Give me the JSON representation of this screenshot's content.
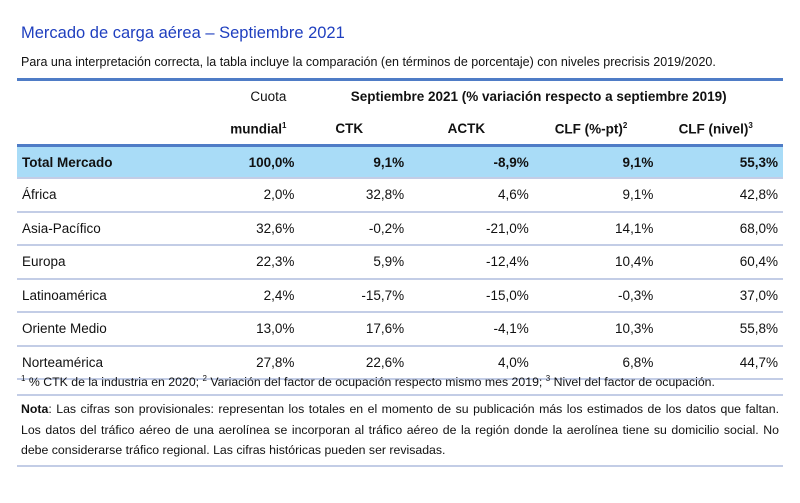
{
  "title": "Mercado de carga aérea – Septiembre 2021",
  "subtitle": "Para una interpretación correcta, la tabla incluye la comparación (en términos de porcentaje) con niveles precrisis 2019/2020.",
  "table": {
    "header": {
      "cuota_line1": "Cuota",
      "cuota_line2": "mundial",
      "cuota_sup": "1",
      "group_label": "Septiembre 2021 (% variación respecto a septiembre 2019)",
      "ctk": "CTK",
      "actk": "ACTK",
      "clf_pt": "CLF (%-pt)",
      "clf_pt_sup": "2",
      "clf_nivel": "CLF (nivel)",
      "clf_nivel_sup": "3"
    },
    "total": {
      "region": "Total Mercado",
      "cuota": "100,0%",
      "ctk": "9,1%",
      "actk": "-8,9%",
      "clf_pt": "9,1%",
      "clf_nivel": "55,3%"
    },
    "rows": [
      {
        "region": "África",
        "cuota": "2,0%",
        "ctk": "32,8%",
        "actk": "4,6%",
        "clf_pt": "9,1%",
        "clf_nivel": "42,8%"
      },
      {
        "region": "Asia-Pacífico",
        "cuota": "32,6%",
        "ctk": "-0,2%",
        "actk": "-21,0%",
        "clf_pt": "14,1%",
        "clf_nivel": "68,0%"
      },
      {
        "region": "Europa",
        "cuota": "22,3%",
        "ctk": "5,9%",
        "actk": "-12,4%",
        "clf_pt": "10,4%",
        "clf_nivel": "60,4%"
      },
      {
        "region": "Latinoamérica",
        "cuota": "2,4%",
        "ctk": "-15,7%",
        "actk": "-15,0%",
        "clf_pt": "-0,3%",
        "clf_nivel": "37,0%"
      },
      {
        "region": "Oriente Medio",
        "cuota": "13,0%",
        "ctk": "17,6%",
        "actk": "-4,1%",
        "clf_pt": "10,3%",
        "clf_nivel": "55,8%"
      },
      {
        "region": "Norteamérica",
        "cuota": "27,8%",
        "ctk": "22,6%",
        "actk": "4,0%",
        "clf_pt": "6,8%",
        "clf_nivel": "44,7%"
      }
    ]
  },
  "footnotes": {
    "n1_sup": "1",
    "n1_text": " % CTK de la industria en 2020; ",
    "n2_sup": "2",
    "n2_text": " Variación del factor de ocupación respecto mismo mes 2019; ",
    "n3_sup": "3",
    "n3_text": " Nivel del factor de ocupación."
  },
  "nota": {
    "label": "Nota",
    "text": ": Las cifras son provisionales: representan los totales en el momento de su publicación más los estimados de los datos que faltan. Los datos del tráfico aéreo de una aerolínea se incorporan al tráfico aéreo de la región donde la aerolínea tiene su domicilio social. No debe considerarse tráfico regional. Las cifras históricas pueden ser revisadas."
  },
  "colors": {
    "title": "#1f3fbf",
    "rule": "#4f7cc6",
    "total_row_bg": "#a9dcf7",
    "row_divider": "#c3cde6"
  }
}
